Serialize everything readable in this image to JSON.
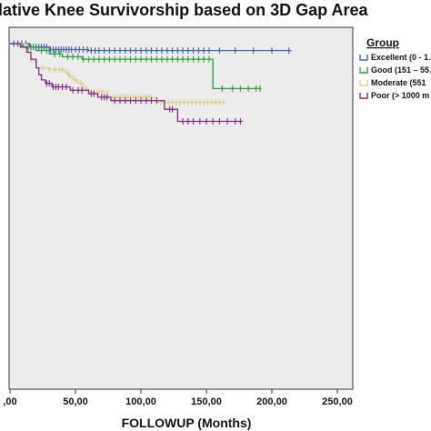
{
  "chart_data": {
    "type": "line",
    "title": "lative Knee Survivorship based on 3D Gap Area",
    "xlabel": "FOLLOWUP (Months)",
    "ylabel": "",
    "xlim": [
      0,
      250
    ],
    "ylim": [
      0,
      1
    ],
    "x_tick_labels": [
      ",00",
      "50,00",
      "100,00",
      "150,00",
      "200,00",
      "250,00"
    ],
    "x_tick_values": [
      0,
      50,
      100,
      150,
      200,
      250
    ],
    "legend_title": "Group",
    "legend_placement": "right",
    "grid": false,
    "background": "#ececec",
    "series": [
      {
        "name": "Excellent (0 - 1…",
        "color": "#3b5f9e",
        "steps": [
          [
            0,
            1.0
          ],
          [
            15,
            0.99
          ],
          [
            30,
            0.983
          ],
          [
            60,
            0.98
          ],
          [
            215,
            0.98
          ]
        ],
        "censored": [
          3,
          6,
          9,
          12,
          16,
          18,
          20,
          22,
          24,
          26,
          28,
          31,
          33,
          35,
          37,
          39,
          41,
          43,
          45,
          47,
          50,
          53,
          56,
          59,
          62,
          65,
          68,
          72,
          76,
          80,
          84,
          88,
          92,
          96,
          100,
          104,
          108,
          112,
          116,
          120,
          124,
          128,
          132,
          136,
          140,
          144,
          148,
          152,
          160,
          172,
          186,
          200,
          213
        ]
      },
      {
        "name": "Good (151 – 55…",
        "color": "#2e9b3a",
        "steps": [
          [
            0,
            1.0
          ],
          [
            10,
            0.99
          ],
          [
            20,
            0.98
          ],
          [
            30,
            0.97
          ],
          [
            40,
            0.962
          ],
          [
            55,
            0.955
          ],
          [
            155,
            0.955
          ],
          [
            155,
            0.87
          ],
          [
            192,
            0.87
          ]
        ],
        "censored": [
          14,
          18,
          24,
          28,
          34,
          38,
          44,
          48,
          52,
          56,
          60,
          64,
          68,
          72,
          76,
          80,
          84,
          88,
          92,
          96,
          100,
          104,
          108,
          112,
          116,
          120,
          124,
          128,
          132,
          136,
          140,
          144,
          148,
          152,
          162,
          170,
          176,
          182,
          188,
          191
        ]
      },
      {
        "name": "Moderate (551",
        "color": "#d9cf8f",
        "steps": [
          [
            0,
            1.0
          ],
          [
            12,
            0.975
          ],
          [
            16,
            0.95
          ],
          [
            20,
            0.93
          ],
          [
            30,
            0.925
          ],
          [
            42,
            0.915
          ],
          [
            45,
            0.905
          ],
          [
            48,
            0.895
          ],
          [
            52,
            0.885
          ],
          [
            56,
            0.87
          ],
          [
            60,
            0.86
          ],
          [
            72,
            0.86
          ],
          [
            75,
            0.845
          ],
          [
            110,
            0.845
          ],
          [
            112,
            0.83
          ],
          [
            165,
            0.83
          ]
        ],
        "censored": [
          25,
          30,
          34,
          38,
          40,
          44,
          46,
          50,
          54,
          58,
          62,
          64,
          66,
          68,
          70,
          78,
          80,
          82,
          84,
          86,
          88,
          90,
          92,
          94,
          96,
          98,
          100,
          102,
          104,
          106,
          108,
          115,
          118,
          121,
          124,
          127,
          130,
          133,
          136,
          139,
          142,
          145,
          148,
          151,
          154,
          157,
          160,
          163
        ]
      },
      {
        "name": "Poor (> 1000 m",
        "color": "#7a2a7e",
        "steps": [
          [
            0,
            1.0
          ],
          [
            8,
            0.99
          ],
          [
            13,
            0.975
          ],
          [
            16,
            0.955
          ],
          [
            20,
            0.93
          ],
          [
            22,
            0.91
          ],
          [
            24,
            0.895
          ],
          [
            27,
            0.885
          ],
          [
            32,
            0.875
          ],
          [
            46,
            0.865
          ],
          [
            60,
            0.855
          ],
          [
            67,
            0.845
          ],
          [
            77,
            0.835
          ],
          [
            115,
            0.835
          ],
          [
            118,
            0.81
          ],
          [
            128,
            0.81
          ],
          [
            128,
            0.775
          ],
          [
            178,
            0.775
          ]
        ],
        "censored": [
          28,
          30,
          33,
          35,
          37,
          40,
          43,
          48,
          52,
          55,
          62,
          64,
          70,
          72,
          74,
          80,
          84,
          88,
          92,
          96,
          100,
          104,
          108,
          112,
          122,
          124,
          132,
          136,
          140,
          145,
          150,
          155,
          160,
          166,
          172,
          176
        ]
      }
    ]
  }
}
